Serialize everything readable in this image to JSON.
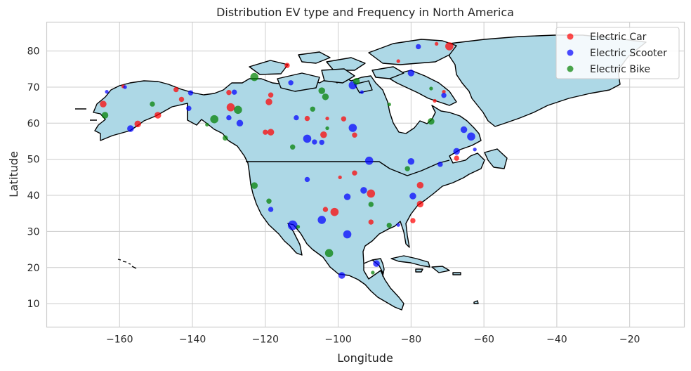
{
  "chart_data": {
    "type": "scatter",
    "title": "Distribution EV type and Frequency in North America",
    "xlabel": "Longitude",
    "ylabel": "Latitude",
    "xlim": [
      -180,
      -5
    ],
    "ylim": [
      3.5,
      88
    ],
    "xticks": [
      -160,
      -140,
      -120,
      -100,
      -80,
      -60,
      -40,
      -20
    ],
    "yticks": [
      10,
      20,
      30,
      40,
      50,
      60,
      70,
      80
    ],
    "xtick_labels": [
      "−160",
      "−140",
      "−120",
      "−100",
      "−80",
      "−60",
      "−40",
      "−20"
    ],
    "ytick_labels": [
      "10",
      "20",
      "30",
      "40",
      "50",
      "60",
      "70",
      "80"
    ],
    "grid": true,
    "legend_position": "top-right",
    "land_color": "#add8e6",
    "series": [
      {
        "name": "Electric Car",
        "color": "#ff0000",
        "points": [
          [
            -69.5,
            81.3,
            4
          ],
          [
            -83.5,
            77.2,
            1
          ],
          [
            -73,
            82,
            1
          ],
          [
            -114,
            76,
            2
          ],
          [
            -71,
            68.7,
            1
          ],
          [
            -73.5,
            66.2,
            1
          ],
          [
            -164.5,
            65.3,
            3
          ],
          [
            -159,
            70.2,
            1
          ],
          [
            -144.5,
            69.3,
            2
          ],
          [
            -143,
            66.6,
            2
          ],
          [
            -149.5,
            62.2,
            3
          ],
          [
            -155,
            59.8,
            3
          ],
          [
            -130,
            68.5,
            2
          ],
          [
            -118.5,
            67.8,
            2
          ],
          [
            -119,
            65.9,
            3
          ],
          [
            -129.5,
            64.4,
            4
          ],
          [
            -103,
            61.3,
            1
          ],
          [
            -108.5,
            61.3,
            2
          ],
          [
            -98.5,
            61.2,
            2
          ],
          [
            -120,
            57.5,
            2
          ],
          [
            -118.5,
            57.5,
            3
          ],
          [
            -104,
            56.8,
            3
          ],
          [
            -95.5,
            56.7,
            2
          ],
          [
            -67.5,
            50.3,
            2
          ],
          [
            -77.5,
            42.8,
            3
          ],
          [
            -95.5,
            46.2,
            2
          ],
          [
            -99.5,
            45,
            1
          ],
          [
            -91,
            40.5,
            4
          ],
          [
            -77.5,
            37.6,
            3
          ],
          [
            -103.5,
            36.1,
            2
          ],
          [
            -101,
            35.4,
            4
          ],
          [
            -91,
            32.6,
            2
          ],
          [
            -79.5,
            33,
            2
          ]
        ]
      },
      {
        "name": "Electric Scooter",
        "color": "#0000ff",
        "points": [
          [
            -78,
            81.2,
            2
          ],
          [
            -80,
            73.9,
            3
          ],
          [
            -113,
            71.2,
            2
          ],
          [
            -96,
            70.5,
            4
          ],
          [
            -93.5,
            68.6,
            1
          ],
          [
            -71,
            67.7,
            2
          ],
          [
            -128.5,
            68.6,
            2
          ],
          [
            -140.5,
            68.4,
            2
          ],
          [
            -163.5,
            68.7,
            1
          ],
          [
            -158.5,
            70,
            1
          ],
          [
            -141,
            64.1,
            2
          ],
          [
            -130,
            61.5,
            2
          ],
          [
            -111.5,
            61.5,
            2
          ],
          [
            -96,
            58.7,
            4
          ],
          [
            -127,
            60,
            3
          ],
          [
            -157,
            58.5,
            3
          ],
          [
            -108.5,
            55.7,
            4
          ],
          [
            -106.5,
            54.8,
            2
          ],
          [
            -104.5,
            54.7,
            2
          ],
          [
            -65.5,
            58.2,
            3
          ],
          [
            -63.5,
            56.3,
            4
          ],
          [
            -62.5,
            52.7,
            1
          ],
          [
            -67.5,
            52.2,
            3
          ],
          [
            -72,
            48.6,
            2
          ],
          [
            -91.5,
            49.6,
            4
          ],
          [
            -80,
            49.4,
            3
          ],
          [
            -108.5,
            44.4,
            2
          ],
          [
            -97.5,
            39.6,
            3
          ],
          [
            -93,
            41.4,
            3
          ],
          [
            -79.5,
            39.8,
            3
          ],
          [
            -118.5,
            36.1,
            2
          ],
          [
            -112.5,
            31.7,
            5
          ],
          [
            -104.5,
            33.2,
            4
          ],
          [
            -97.5,
            29.2,
            4
          ],
          [
            -83.5,
            31.8,
            1
          ],
          [
            -89.5,
            21.1,
            3
          ],
          [
            -99,
            17.8,
            3
          ]
        ]
      },
      {
        "name": "Electric Bike",
        "color": "#008000",
        "points": [
          [
            -123,
            72.8,
            4
          ],
          [
            -104.5,
            69,
            3
          ],
          [
            -103.5,
            67.3,
            3
          ],
          [
            -95,
            71.6,
            3
          ],
          [
            -74.5,
            69.6,
            1
          ],
          [
            -86,
            65.2,
            1
          ],
          [
            -107,
            63.9,
            2
          ],
          [
            -151,
            65.3,
            2
          ],
          [
            -164,
            62.2,
            3
          ],
          [
            -127.5,
            63.7,
            4
          ],
          [
            -134,
            61.1,
            4
          ],
          [
            -136,
            59.6,
            1
          ],
          [
            -112.5,
            53.4,
            2
          ],
          [
            -131,
            55.9,
            2
          ],
          [
            -103,
            58.6,
            1
          ],
          [
            -74.5,
            60.5,
            3
          ],
          [
            -81,
            47.4,
            2
          ],
          [
            -123,
            42.7,
            3
          ],
          [
            -119,
            38.4,
            2
          ],
          [
            -91,
            37.5,
            2
          ],
          [
            -111,
            31.3,
            1
          ],
          [
            -86,
            31.7,
            2
          ],
          [
            -102.5,
            24,
            4
          ],
          [
            -90.5,
            18.6,
            1
          ]
        ]
      }
    ]
  }
}
